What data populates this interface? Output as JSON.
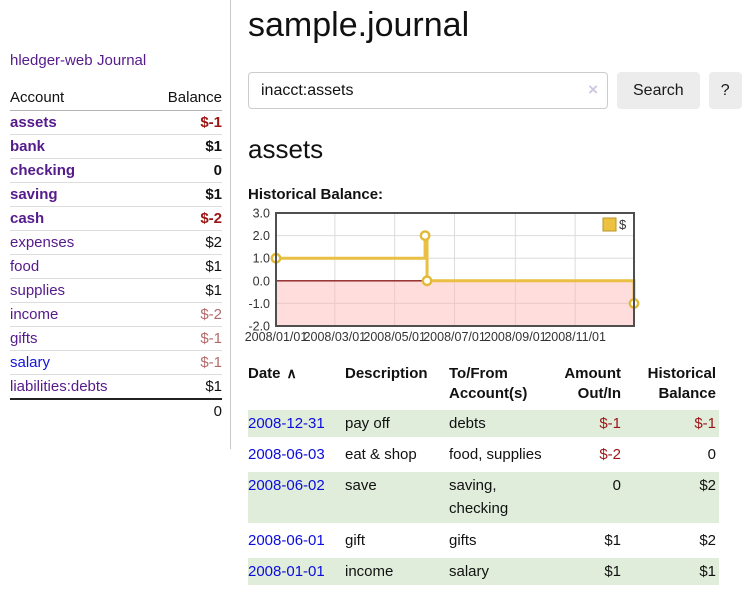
{
  "app": {
    "title": "hledger-web"
  },
  "sidebar": {
    "journal_link": "Journal",
    "accounts_table": {
      "headers": [
        "Account",
        "Balance"
      ],
      "rows": [
        {
          "name": "assets",
          "level": 0,
          "name_style": "purple-bold",
          "balance": "$-1",
          "balance_style": "neg-strong"
        },
        {
          "name": "bank",
          "level": 1,
          "name_style": "purple-bold",
          "balance": "$1",
          "balance_style": "pos-strong"
        },
        {
          "name": "checking",
          "level": 2,
          "name_style": "purple-bold",
          "balance": "0",
          "balance_style": "pos-strong"
        },
        {
          "name": "saving",
          "level": 2,
          "name_style": "purple-bold",
          "balance": "$1",
          "balance_style": "pos-strong"
        },
        {
          "name": "cash",
          "level": 1,
          "name_style": "purple-bold",
          "balance": "$-2",
          "balance_style": "neg-strong"
        },
        {
          "name": "expenses",
          "level": 0,
          "name_style": "purple",
          "balance": "$2",
          "balance_style": "plain"
        },
        {
          "name": "food",
          "level": 1,
          "name_style": "purple",
          "balance": "$1",
          "balance_style": "plain"
        },
        {
          "name": "supplies",
          "level": 1,
          "name_style": "purple",
          "balance": "$1",
          "balance_style": "plain"
        },
        {
          "name": "income",
          "level": 0,
          "name_style": "purple",
          "balance": "$-2",
          "balance_style": "neg-soft"
        },
        {
          "name": "gifts",
          "level": 1,
          "name_style": "purple",
          "balance": "$-1",
          "balance_style": "neg-soft"
        },
        {
          "name": "salary",
          "level": 1,
          "name_style": "blue",
          "balance": "$-1",
          "balance_style": "neg-soft"
        },
        {
          "name": "liabilities:debts",
          "level": 0,
          "name_style": "purple",
          "balance": "$1",
          "balance_style": "plain"
        }
      ],
      "total": "0"
    }
  },
  "header": {
    "title": "sample.journal"
  },
  "search": {
    "value": "inacct:assets",
    "clear_icon": "×",
    "button_label": "Search",
    "help_label": "?"
  },
  "main": {
    "account_heading": "assets",
    "chart_label": "Historical Balance:"
  },
  "chart_data": {
    "type": "line",
    "title": "Historical Balance",
    "step": true,
    "series": [
      {
        "name": "$",
        "points": [
          [
            "2008-01-01",
            1
          ],
          [
            "2008-06-01",
            2
          ],
          [
            "2008-06-03",
            0
          ],
          [
            "2008-12-31",
            -1
          ]
        ]
      }
    ],
    "x_range": [
      "2008-01-01",
      "2008-12-31"
    ],
    "x_ticks": [
      "2008/01/01",
      "2008/03/01",
      "2008/05/01",
      "2008/07/01",
      "2008/09/01",
      "2008/11/01"
    ],
    "y_ticks": [
      "3.0",
      "2.0",
      "1.0",
      "0.0",
      "-1.0",
      "-2.0"
    ],
    "ylim": [
      -2,
      3
    ],
    "legend": [
      "$"
    ],
    "legend_position": "top-right",
    "grid": true,
    "colors": {
      "line": "#e9c044",
      "marker_stroke": "#e3ba37",
      "marker_fill": "#ffffff",
      "zero_line": "#8b1c1c",
      "negative_fill": "rgba(255,180,180,0.45)",
      "gridline": "#dcdcdc",
      "border": "#4f4f4f",
      "legend_swatch": "#edc240",
      "legend_swatch_border": "#b89627",
      "tick_text": "#333333"
    }
  },
  "register_table": {
    "headers": [
      "Date",
      "Description",
      "To/From Account(s)",
      "Amount Out/In",
      "Historical Balance"
    ],
    "sort_icon": "∧",
    "rows": [
      {
        "date": "2008-12-31",
        "description": "pay off",
        "accounts": "debts",
        "amount": "$-1",
        "amount_neg": true,
        "balance": "$-1",
        "balance_neg": true,
        "shaded": true
      },
      {
        "date": "2008-06-03",
        "description": "eat & shop",
        "accounts": "food, supplies",
        "amount": "$-2",
        "amount_neg": true,
        "balance": "0",
        "balance_neg": false,
        "shaded": false
      },
      {
        "date": "2008-06-02",
        "description": "save",
        "accounts": "saving, checking",
        "amount": "0",
        "amount_neg": false,
        "balance": "$2",
        "balance_neg": false,
        "shaded": true
      },
      {
        "date": "2008-06-01",
        "description": "gift",
        "accounts": "gifts",
        "amount": "$1",
        "amount_neg": false,
        "balance": "$2",
        "balance_neg": false,
        "shaded": false
      },
      {
        "date": "2008-01-01",
        "description": "income",
        "accounts": "salary",
        "amount": "$1",
        "amount_neg": false,
        "balance": "$1",
        "balance_neg": false,
        "shaded": true
      }
    ]
  }
}
